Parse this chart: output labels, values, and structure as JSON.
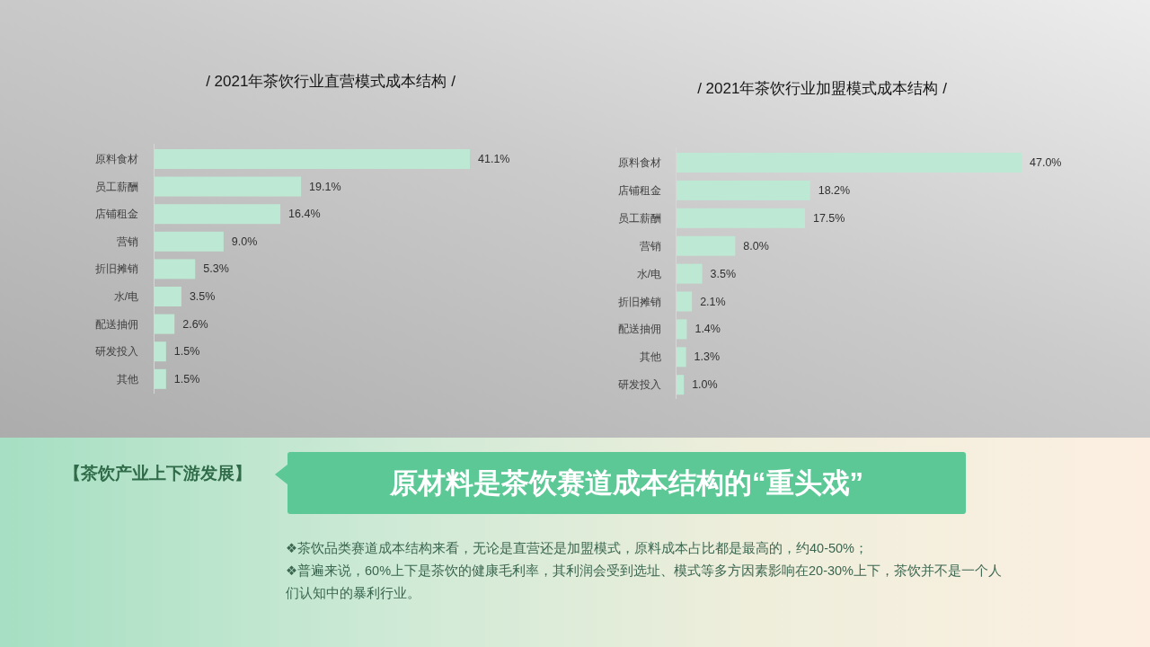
{
  "chart_data": [
    {
      "type": "bar",
      "orientation": "horizontal",
      "title": "/ 2021年茶饮行业直营模式成本结构 /",
      "categories": [
        "原料食材",
        "员工薪酬",
        "店铺租金",
        "营销",
        "折旧摊销",
        "水/电",
        "配送抽佣",
        "研发投入",
        "其他"
      ],
      "values": [
        41.1,
        19.1,
        16.4,
        9.0,
        5.3,
        3.5,
        2.6,
        1.5,
        1.5
      ],
      "value_labels": [
        "41.1%",
        "19.1%",
        "16.4%",
        "9.0%",
        "5.3%",
        "3.5%",
        "2.6%",
        "1.5%",
        "1.5%"
      ],
      "color": "#bde8d4"
    },
    {
      "type": "bar",
      "orientation": "horizontal",
      "title": "/ 2021年茶饮行业加盟模式成本结构 /",
      "categories": [
        "原料食材",
        "店铺租金",
        "员工薪酬",
        "营销",
        "水/电",
        "折旧摊销",
        "配送抽佣",
        "其他",
        "研发投入"
      ],
      "values": [
        47.0,
        18.2,
        17.5,
        8.0,
        3.5,
        2.1,
        1.4,
        1.3,
        1.0
      ],
      "value_labels": [
        "47.0%",
        "18.2%",
        "17.5%",
        "8.0%",
        "3.5%",
        "2.1%",
        "1.4%",
        "1.3%",
        "1.0%"
      ],
      "color": "#bde8d4"
    },
    {
      "type": "other",
      "title": "原材料是茶饮赛道成本结构的“重头戏”",
      "subtitle": "【茶饮产业上下游发展】",
      "annotations": [
        "❖茶饮品类赛道成本结构来看，无论是直营还是加盟模式，原料成本占比都是最高的，约40-50%；",
        "❖普遍来说，60%上下是茶饮的健康毛利率，其利润会受到选址、模式等多方因素影响在20-30%上下，茶饮并不是一个人们认知中的暴利行业。"
      ]
    }
  ]
}
